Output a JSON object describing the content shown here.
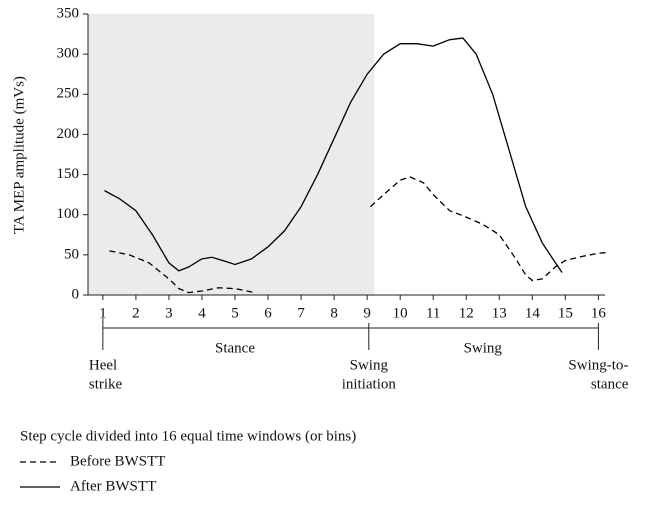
{
  "chart_data": {
    "type": "line",
    "ylabel": "TA MEP amplitude (mVs)",
    "xlabel": "Step cycle divided into 16 equal time windows (or bins)",
    "xlim": [
      0.55,
      16.2
    ],
    "ylim": [
      0,
      350
    ],
    "xticks": [
      1,
      2,
      3,
      4,
      5,
      6,
      7,
      8,
      9,
      10,
      11,
      12,
      13,
      14,
      15,
      16
    ],
    "yticks": [
      0,
      50,
      100,
      150,
      200,
      250,
      300,
      350
    ],
    "shade_xlim": [
      0.55,
      9.22
    ],
    "shade_color": "#ebebeb",
    "phases": [
      {
        "label": "Stance",
        "x": 5
      },
      {
        "label": "Swing",
        "x": 12.5
      }
    ],
    "events": [
      {
        "label": [
          "Heel",
          "strike"
        ],
        "x": 1
      },
      {
        "label": [
          "Swing",
          "initiation"
        ],
        "x": 9.05
      },
      {
        "label": [
          "Swing-to-",
          "stance"
        ],
        "x": 16
      }
    ],
    "series": [
      {
        "name": "Before BWSTT",
        "color": "#000000",
        "dash": true,
        "x": [
          1.2,
          1.8,
          2.4,
          3,
          3.3,
          3.6,
          4,
          4.5,
          5,
          5.6,
          null,
          9.1,
          9.5,
          10,
          10.3,
          10.7,
          11,
          11.5,
          12,
          12.5,
          13,
          13.5,
          13.8,
          14,
          14.3,
          14.7,
          15,
          15.5,
          16,
          16.3
        ],
        "values": [
          55,
          50,
          40,
          20,
          8,
          3,
          5,
          9,
          8,
          3,
          null,
          110,
          125,
          143,
          147,
          140,
          125,
          105,
          97,
          88,
          75,
          45,
          25,
          18,
          20,
          35,
          43,
          48,
          52,
          53
        ]
      },
      {
        "name": "After BWSTT",
        "color": "#000000",
        "dash": false,
        "x": [
          1.05,
          1.5,
          2,
          2.5,
          3,
          3.3,
          3.6,
          4,
          4.3,
          4.7,
          5,
          5.5,
          6,
          6.5,
          7,
          7.5,
          8,
          8.5,
          9,
          9.5,
          10,
          10.5,
          11,
          11.5,
          11.9,
          12.3,
          12.8,
          13.3,
          13.8,
          14.3,
          14.7,
          14.9
        ],
        "values": [
          130,
          120,
          105,
          75,
          40,
          30,
          35,
          45,
          47,
          42,
          38,
          45,
          60,
          80,
          110,
          150,
          195,
          240,
          275,
          300,
          313,
          313,
          310,
          318,
          320,
          300,
          250,
          180,
          110,
          65,
          40,
          28
        ]
      }
    ]
  }
}
